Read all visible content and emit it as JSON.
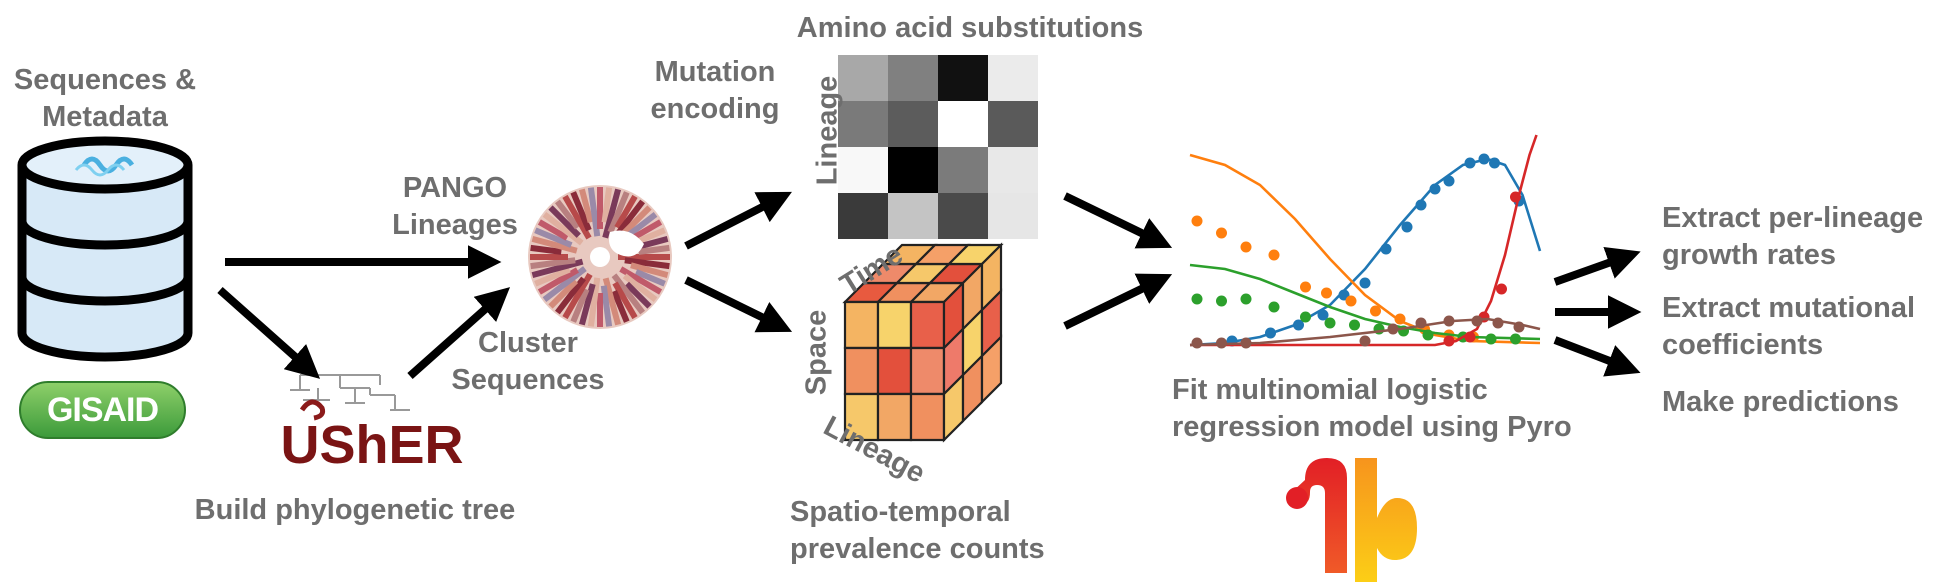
{
  "sequences": {
    "line1": "Sequences &",
    "line2": "Metadata"
  },
  "gisaid": {
    "text": "GISAID"
  },
  "usher": {
    "text": "UShER",
    "caption": "Build phylogenetic tree"
  },
  "pango": {
    "line1": "PANGO",
    "line2": "Lineages"
  },
  "cluster": {
    "line1": "Cluster",
    "line2": "Sequences"
  },
  "mutation": {
    "line1": "Mutation",
    "line2": "encoding"
  },
  "heatmap": {
    "title": "Amino acid substitutions",
    "row_axis": "Lineage",
    "cells": [
      [
        "#a8a8a8",
        "#808080",
        "#111111",
        "#ebebeb"
      ],
      [
        "#7a7a7a",
        "#5c5c5c",
        "#ffffff",
        "#5a5a5a"
      ],
      [
        "#f8f8f8",
        "#000000",
        "#7b7b7b",
        "#e8e8e8"
      ],
      [
        "#3a3a3a",
        "#c4c4c4",
        "#4a4a4a",
        "#e6e6e6"
      ]
    ]
  },
  "cube": {
    "axis_time": "Time",
    "axis_space": "Space",
    "axis_lineage": "Lineage",
    "caption_line1": "Spatio-temporal",
    "caption_line2": "prevalence counts",
    "top_faces": [
      "#e85a3f",
      "#f0905f",
      "#f2a765",
      "#ee8a6a",
      "#f6c86a",
      "#e3503c",
      "#f4b462",
      "#f5a068",
      "#f7d36b"
    ],
    "front_faces": [
      "#f4b462",
      "#f7d36b",
      "#e8604a",
      "#f0905f",
      "#e3503c",
      "#ee8a6a",
      "#f6c86a",
      "#f2a765",
      "#f0905f"
    ],
    "side_faces": [
      "#e3503c",
      "#f2a765",
      "#f4b462",
      "#ee7a6a",
      "#f7d36b",
      "#e8604a",
      "#f6c86a",
      "#f0905f",
      "#f5a068"
    ]
  },
  "model": {
    "caption_line1": "Fit multinomial logistic",
    "caption_line2": "regression model using Pyro",
    "series": [
      {
        "color": "#1f77b4",
        "curve": [
          [
            0,
            0.0
          ],
          [
            0.1,
            0.01
          ],
          [
            0.2,
            0.04
          ],
          [
            0.3,
            0.1
          ],
          [
            0.4,
            0.2
          ],
          [
            0.5,
            0.38
          ],
          [
            0.6,
            0.6
          ],
          [
            0.7,
            0.8
          ],
          [
            0.78,
            0.9
          ],
          [
            0.85,
            0.93
          ],
          [
            0.9,
            0.9
          ],
          [
            0.95,
            0.75
          ],
          [
            1,
            0.47
          ]
        ],
        "points": [
          [
            0.12,
            0.02
          ],
          [
            0.23,
            0.06
          ],
          [
            0.31,
            0.1
          ],
          [
            0.38,
            0.15
          ],
          [
            0.44,
            0.25
          ],
          [
            0.5,
            0.31
          ],
          [
            0.56,
            0.48
          ],
          [
            0.62,
            0.59
          ],
          [
            0.66,
            0.7
          ],
          [
            0.7,
            0.78
          ],
          [
            0.74,
            0.82
          ],
          [
            0.8,
            0.91
          ],
          [
            0.84,
            0.93
          ],
          [
            0.87,
            0.91
          ],
          [
            0.94,
            0.72
          ]
        ]
      },
      {
        "color": "#ff7f0e",
        "curve": [
          [
            0,
            0.95
          ],
          [
            0.1,
            0.9
          ],
          [
            0.2,
            0.8
          ],
          [
            0.3,
            0.63
          ],
          [
            0.4,
            0.43
          ],
          [
            0.5,
            0.25
          ],
          [
            0.6,
            0.12
          ],
          [
            0.7,
            0.05
          ],
          [
            0.8,
            0.02
          ],
          [
            1,
            0.01
          ]
        ],
        "points": [
          [
            0.02,
            0.62
          ],
          [
            0.09,
            0.56
          ],
          [
            0.16,
            0.49
          ],
          [
            0.24,
            0.45
          ],
          [
            0.33,
            0.29
          ],
          [
            0.39,
            0.26
          ],
          [
            0.46,
            0.22
          ],
          [
            0.53,
            0.17
          ],
          [
            0.6,
            0.13
          ],
          [
            0.67,
            0.08
          ],
          [
            0.74,
            0.05
          ],
          [
            0.81,
            0.04
          ]
        ]
      },
      {
        "color": "#2ca02c",
        "curve": [
          [
            0,
            0.4
          ],
          [
            0.1,
            0.38
          ],
          [
            0.2,
            0.33
          ],
          [
            0.3,
            0.26
          ],
          [
            0.4,
            0.19
          ],
          [
            0.5,
            0.13
          ],
          [
            0.6,
            0.09
          ],
          [
            0.7,
            0.06
          ],
          [
            0.8,
            0.04
          ],
          [
            1,
            0.03
          ]
        ],
        "points": [
          [
            0.02,
            0.23
          ],
          [
            0.09,
            0.22
          ],
          [
            0.16,
            0.23
          ],
          [
            0.24,
            0.19
          ],
          [
            0.33,
            0.14
          ],
          [
            0.4,
            0.11
          ],
          [
            0.47,
            0.1
          ],
          [
            0.54,
            0.08
          ],
          [
            0.61,
            0.07
          ],
          [
            0.68,
            0.05
          ],
          [
            0.78,
            0.04
          ],
          [
            0.86,
            0.03
          ],
          [
            0.93,
            0.03
          ]
        ]
      },
      {
        "color": "#d62728",
        "curve": [
          [
            0,
            0.0
          ],
          [
            0.7,
            0.0
          ],
          [
            0.76,
            0.02
          ],
          [
            0.82,
            0.08
          ],
          [
            0.86,
            0.22
          ],
          [
            0.9,
            0.45
          ],
          [
            0.94,
            0.75
          ],
          [
            0.97,
            0.95
          ],
          [
            0.99,
            1.05
          ]
        ],
        "points": [
          [
            0.74,
            0.02
          ],
          [
            0.8,
            0.04
          ],
          [
            0.84,
            0.14
          ],
          [
            0.89,
            0.28
          ],
          [
            0.93,
            0.74
          ]
        ]
      },
      {
        "color": "#8c564b",
        "curve": [
          [
            0,
            0.0
          ],
          [
            0.2,
            0.01
          ],
          [
            0.4,
            0.04
          ],
          [
            0.6,
            0.08
          ],
          [
            0.75,
            0.12
          ],
          [
            0.85,
            0.13
          ],
          [
            0.95,
            0.1
          ],
          [
            1,
            0.08
          ]
        ],
        "points": [
          [
            0.02,
            0.01
          ],
          [
            0.09,
            0.01
          ],
          [
            0.16,
            0.01
          ],
          [
            0.5,
            0.02
          ],
          [
            0.58,
            0.08
          ],
          [
            0.66,
            0.11
          ],
          [
            0.74,
            0.12
          ],
          [
            0.82,
            0.12
          ],
          [
            0.88,
            0.11
          ],
          [
            0.94,
            0.09
          ]
        ]
      }
    ]
  },
  "outputs": {
    "item1_line1": "Extract per-lineage",
    "item1_line2": "growth rates",
    "item2_line1": "Extract mutational",
    "item2_line2": "coefficients",
    "item3": "Make predictions"
  }
}
